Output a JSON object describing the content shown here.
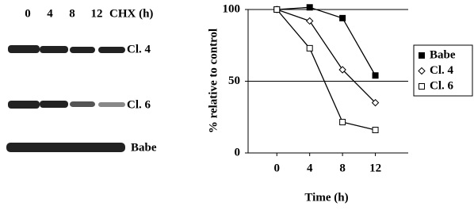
{
  "blot": {
    "lanes": [
      "0",
      "4",
      "8",
      "12"
    ],
    "unit": "CHX (h)",
    "rows": [
      "Cl. 4",
      "Cl. 6",
      "Babe"
    ]
  },
  "chart_data": {
    "type": "line",
    "x": [
      0,
      4,
      8,
      12
    ],
    "xlim": [
      -3.5,
      16
    ],
    "xticks": [
      0,
      4,
      8,
      12
    ],
    "ylim": [
      0,
      100
    ],
    "yticks": [
      0,
      50,
      100
    ],
    "grid": true,
    "ylabel": "% relative to control",
    "xlabel": "Time (h)",
    "legend": "right",
    "series": [
      {
        "name": "Babe",
        "color": "#000000",
        "marker": "filled-square",
        "values": [
          100,
          101.5,
          94,
          54
        ]
      },
      {
        "name": "Cl. 4",
        "color": "#000000",
        "marker": "open-diamond",
        "values": [
          100,
          92,
          58,
          35
        ]
      },
      {
        "name": "Cl. 6",
        "color": "#000000",
        "marker": "open-square",
        "values": [
          100,
          73,
          21.5,
          16
        ]
      }
    ]
  }
}
